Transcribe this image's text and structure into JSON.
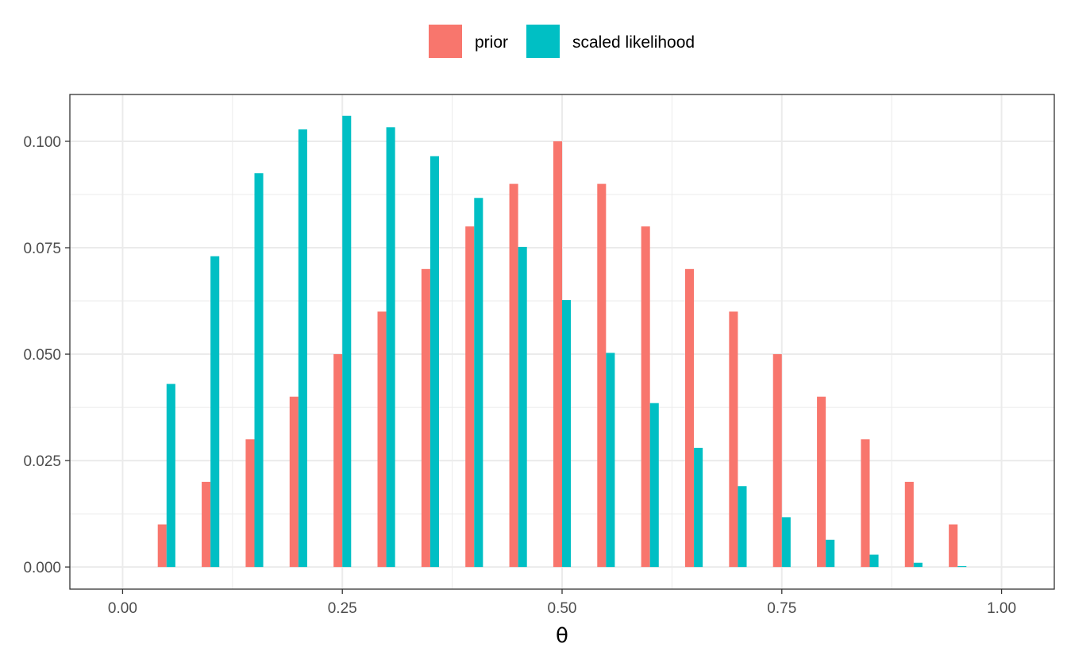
{
  "chart_data": {
    "type": "bar",
    "title": "",
    "xlabel": "θ",
    "ylabel": "",
    "x": [
      0.05,
      0.1,
      0.15,
      0.2,
      0.25,
      0.3,
      0.35,
      0.4,
      0.45,
      0.5,
      0.55,
      0.6,
      0.65,
      0.7,
      0.75,
      0.8,
      0.85,
      0.9,
      0.95
    ],
    "xlim": [
      -0.06,
      1.06
    ],
    "ylim": [
      -0.0052,
      0.111
    ],
    "x_ticks": [
      0.0,
      0.25,
      0.5,
      0.75,
      1.0
    ],
    "x_tick_labels": [
      "0.00",
      "0.25",
      "0.50",
      "0.75",
      "1.00"
    ],
    "y_ticks": [
      0.0,
      0.025,
      0.05,
      0.075,
      0.1
    ],
    "y_tick_labels": [
      "0.000",
      "0.025",
      "0.050",
      "0.075",
      "0.100"
    ],
    "grid": true,
    "legend_position": "top",
    "series": [
      {
        "name": "prior",
        "color": "#F8766D",
        "values": [
          0.01,
          0.02,
          0.03,
          0.04,
          0.05,
          0.06,
          0.07,
          0.08,
          0.09,
          0.1,
          0.09,
          0.08,
          0.07,
          0.06,
          0.05,
          0.04,
          0.03,
          0.02,
          0.01
        ]
      },
      {
        "name": "scaled likelihood",
        "color": "#00BFC4",
        "values": [
          0.043,
          0.073,
          0.0925,
          0.1028,
          0.106,
          0.1033,
          0.0965,
          0.0867,
          0.0752,
          0.0627,
          0.0503,
          0.0385,
          0.028,
          0.019,
          0.0117,
          0.0064,
          0.0029,
          0.001,
          0.0002
        ]
      }
    ]
  }
}
